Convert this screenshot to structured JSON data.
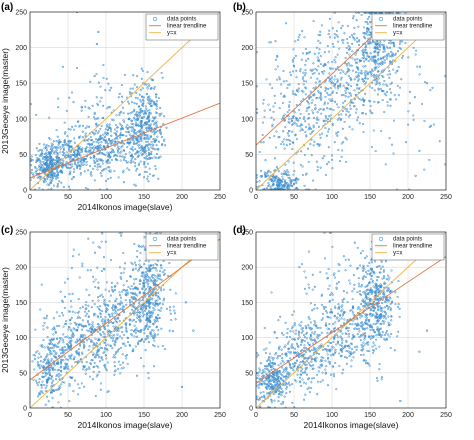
{
  "chart_data": [
    {
      "panel_label": "(a)",
      "type": "scatter",
      "xlabel": "2014Ikonos image(slave)",
      "ylabel": "2013Geoeye image(master)",
      "xlim": [
        0,
        250
      ],
      "ylim": [
        0,
        250
      ],
      "xticks": [
        0,
        50,
        100,
        150,
        200,
        250
      ],
      "yticks": [
        0,
        50,
        100,
        150,
        200,
        250
      ],
      "grid": true,
      "legend_position": "top-right",
      "legend": [
        "data points",
        "linear trendline",
        "y=x"
      ],
      "colors": {
        "points": "#3d8fd0",
        "trendline": "#e2753d",
        "identity": "#f0b247"
      },
      "trendline": {
        "slope": 0.42,
        "intercept": 17
      },
      "clusters": [
        {
          "cx": 25,
          "cy": 32,
          "sx": 10,
          "sy": 14,
          "n": 280
        },
        {
          "cx": 60,
          "cy": 48,
          "sx": 22,
          "sy": 18,
          "n": 300
        },
        {
          "cx": 105,
          "cy": 62,
          "sx": 22,
          "sy": 22,
          "n": 260
        },
        {
          "cx": 150,
          "cy": 88,
          "sx": 12,
          "sy": 32,
          "n": 420
        },
        {
          "cx": 95,
          "cy": 115,
          "sx": 35,
          "sy": 30,
          "n": 70
        }
      ],
      "outliers": [
        [
          88,
          205
        ],
        [
          90,
          222
        ],
        [
          62,
          250
        ],
        [
          85,
          160
        ],
        [
          105,
          140
        ],
        [
          118,
          135
        ]
      ]
    },
    {
      "panel_label": "(b)",
      "type": "scatter",
      "xlabel": "",
      "ylabel": "",
      "xlim": [
        0,
        250
      ],
      "ylim": [
        0,
        250
      ],
      "xticks": [
        0,
        50,
        100,
        150,
        200,
        250
      ],
      "yticks": [
        0,
        50,
        100,
        150,
        200,
        250
      ],
      "grid": true,
      "legend_position": "top-right",
      "legend": [
        "data points",
        "linear trendline",
        "y=x"
      ],
      "colors": {
        "points": "#3d8fd0",
        "trendline": "#e2753d",
        "identity": "#f0b247"
      },
      "trendline": {
        "slope": 1.0,
        "intercept": 63
      },
      "clusters": [
        {
          "cx": 30,
          "cy": 10,
          "sx": 14,
          "sy": 10,
          "n": 200
        },
        {
          "cx": 60,
          "cy": 110,
          "sx": 28,
          "sy": 45,
          "n": 300
        },
        {
          "cx": 110,
          "cy": 150,
          "sx": 30,
          "sy": 40,
          "n": 320
        },
        {
          "cx": 160,
          "cy": 200,
          "sx": 18,
          "sy": 35,
          "n": 420
        },
        {
          "cx": 200,
          "cy": 120,
          "sx": 25,
          "sy": 50,
          "n": 40
        }
      ],
      "outliers": [
        [
          230,
          90
        ],
        [
          225,
          150
        ],
        [
          215,
          55
        ],
        [
          210,
          20
        ]
      ]
    },
    {
      "panel_label": "(c)",
      "type": "scatter",
      "xlabel": "2014Ikonos image(slave)",
      "ylabel": "2013Geoeye image(master)",
      "xlim": [
        0,
        250
      ],
      "ylim": [
        0,
        250
      ],
      "xticks": [
        0,
        50,
        100,
        150,
        200,
        250
      ],
      "yticks": [
        0,
        50,
        100,
        150,
        200,
        250
      ],
      "grid": true,
      "legend_position": "top-right",
      "legend": [
        "data points",
        "linear trendline",
        "y=x"
      ],
      "colors": {
        "points": "#3d8fd0",
        "trendline": "#e2753d",
        "identity": "#f0b247"
      },
      "trendline": {
        "slope": 0.8,
        "intercept": 40
      },
      "clusters": [
        {
          "cx": 28,
          "cy": 60,
          "sx": 12,
          "sy": 25,
          "n": 250
        },
        {
          "cx": 70,
          "cy": 90,
          "sx": 22,
          "sy": 28,
          "n": 300
        },
        {
          "cx": 115,
          "cy": 120,
          "sx": 22,
          "sy": 32,
          "n": 280
        },
        {
          "cx": 155,
          "cy": 160,
          "sx": 12,
          "sy": 38,
          "n": 420
        },
        {
          "cx": 90,
          "cy": 170,
          "sx": 35,
          "sy": 35,
          "n": 70
        }
      ],
      "outliers": [
        [
          95,
          248
        ],
        [
          120,
          245
        ],
        [
          200,
          30
        ],
        [
          215,
          110
        ],
        [
          205,
          150
        ]
      ]
    },
    {
      "panel_label": "(d)",
      "type": "scatter",
      "xlabel": "2014Ikonos image(slave)",
      "ylabel": "",
      "xlim": [
        0,
        250
      ],
      "ylim": [
        0,
        250
      ],
      "xticks": [
        0,
        50,
        100,
        150,
        200,
        250
      ],
      "yticks": [
        0,
        50,
        100,
        150,
        200,
        250
      ],
      "grid": true,
      "legend_position": "top-right",
      "legend": [
        "data points",
        "linear trendline",
        "y=x"
      ],
      "colors": {
        "points": "#3d8fd0",
        "trendline": "#e2753d",
        "identity": "#f0b247"
      },
      "trendline": {
        "slope": 0.72,
        "intercept": 35
      },
      "clusters": [
        {
          "cx": 22,
          "cy": 40,
          "sx": 10,
          "sy": 18,
          "n": 260
        },
        {
          "cx": 60,
          "cy": 75,
          "sx": 20,
          "sy": 25,
          "n": 300
        },
        {
          "cx": 110,
          "cy": 110,
          "sx": 22,
          "sy": 28,
          "n": 280
        },
        {
          "cx": 158,
          "cy": 150,
          "sx": 12,
          "sy": 35,
          "n": 420
        },
        {
          "cx": 110,
          "cy": 175,
          "sx": 30,
          "sy": 30,
          "n": 60
        }
      ],
      "outliers": [
        [
          190,
          10
        ],
        [
          130,
          235
        ],
        [
          215,
          80
        ],
        [
          225,
          110
        ]
      ]
    }
  ]
}
